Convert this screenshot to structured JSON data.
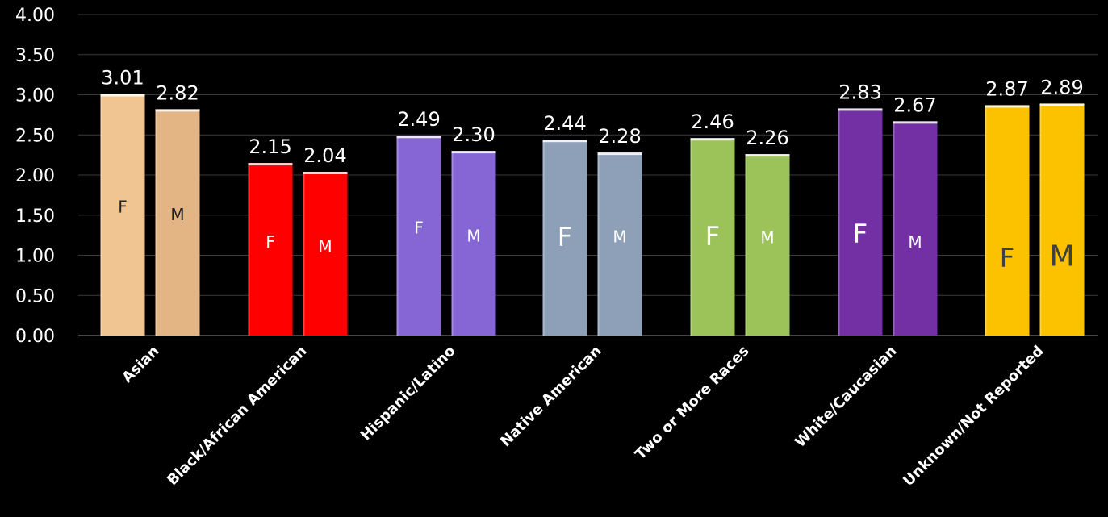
{
  "chart_data": {
    "type": "bar",
    "ylim": [
      0,
      4
    ],
    "yticks": [
      "0.00",
      "0.50",
      "1.00",
      "1.50",
      "2.00",
      "2.50",
      "3.00",
      "3.50",
      "4.00"
    ],
    "grid": true,
    "categories": [
      "Asian",
      "Black/African American",
      "Hispanic/Latino",
      "Native American",
      "Two or More Races",
      "White/Caucasian",
      "Unknown/Not Reported"
    ],
    "bar_letters": [
      "F",
      "M"
    ],
    "values": [
      [
        3.01,
        2.82
      ],
      [
        2.15,
        2.04
      ],
      [
        2.49,
        2.3
      ],
      [
        2.44,
        2.28
      ],
      [
        2.46,
        2.26
      ],
      [
        2.83,
        2.67
      ],
      [
        2.87,
        2.89
      ]
    ],
    "value_labels": [
      [
        "3.01",
        "2.82"
      ],
      [
        "2.15",
        "2.04"
      ],
      [
        "2.49",
        "2.30"
      ],
      [
        "2.44",
        "2.28"
      ],
      [
        "2.46",
        "2.26"
      ],
      [
        "2.83",
        "2.67"
      ],
      [
        "2.87",
        "2.89"
      ]
    ],
    "bar_colors": [
      [
        "#f0c592",
        "#e3b584"
      ],
      [
        "#ff0000",
        "#ff0000"
      ],
      [
        "#8566d4",
        "#8566d4"
      ],
      [
        "#8ea0b8",
        "#8ea0b8"
      ],
      [
        "#9cc35a",
        "#9cc35a"
      ],
      [
        "#7330a5",
        "#7330a5"
      ],
      [
        "#fcc200",
        "#fcc200"
      ]
    ],
    "letter_colors": [
      [
        "#222222",
        "#222222"
      ],
      [
        "#ffffff",
        "#ffffff"
      ],
      [
        "#ffffff",
        "#ffffff"
      ],
      [
        "#ffffff",
        "#ffffff"
      ],
      [
        "#ffffff",
        "#ffffff"
      ],
      [
        "#ffffff",
        "#ffffff"
      ],
      [
        "#404040",
        "#404040"
      ]
    ],
    "background": "#000000"
  }
}
